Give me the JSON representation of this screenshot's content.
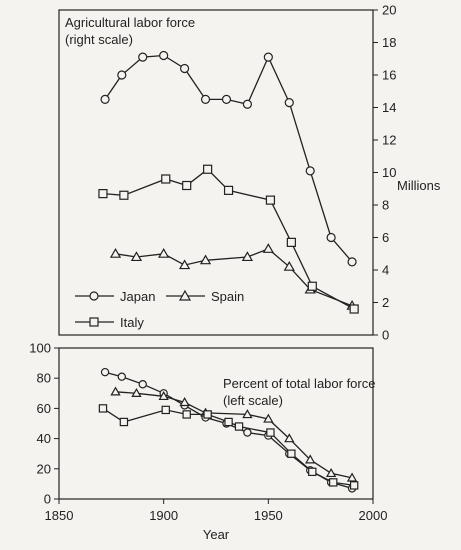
{
  "chart_data": [
    {
      "type": "line",
      "title": "Agricultural labor force",
      "subtitle": "(right scale)",
      "ylabel": "Millions",
      "xlim": [
        1850,
        2000
      ],
      "ylim": [
        0,
        20
      ],
      "yticks": [
        0,
        2,
        4,
        6,
        8,
        10,
        12,
        14,
        16,
        18,
        20
      ],
      "grid": false,
      "legend": {
        "position": "bottom-left",
        "entries": [
          {
            "name": "Japan",
            "marker": "circle"
          },
          {
            "name": "Spain",
            "marker": "triangle"
          },
          {
            "name": "Italy",
            "marker": "square"
          }
        ]
      },
      "series": [
        {
          "name": "Japan",
          "marker": "circle",
          "x": [
            1872,
            1880,
            1890,
            1900,
            1910,
            1920,
            1930,
            1940,
            1950,
            1960,
            1970,
            1980,
            1990
          ],
          "y": [
            14.5,
            16.0,
            17.1,
            17.2,
            16.4,
            14.5,
            14.5,
            14.2,
            17.1,
            14.3,
            10.1,
            6.0,
            4.5
          ]
        },
        {
          "name": "Spain",
          "marker": "triangle",
          "x": [
            1877,
            1887,
            1900,
            1910,
            1920,
            1940,
            1950,
            1960,
            1970,
            1990
          ],
          "y": [
            5.0,
            4.8,
            5.0,
            4.3,
            4.6,
            4.8,
            5.3,
            4.2,
            2.8,
            1.8
          ]
        },
        {
          "name": "Italy",
          "marker": "square",
          "x": [
            1871,
            1881,
            1901,
            1911,
            1921,
            1931,
            1951,
            1961,
            1971,
            1991
          ],
          "y": [
            8.7,
            8.6,
            9.6,
            9.2,
            10.2,
            8.9,
            8.3,
            5.7,
            3.0,
            1.6
          ]
        }
      ]
    },
    {
      "type": "line",
      "title": "Percent of total labor force",
      "subtitle": "(left scale)",
      "xlabel": "Year",
      "xlim": [
        1850,
        2000
      ],
      "ylim": [
        0,
        100
      ],
      "xticks": [
        1850,
        1900,
        1950,
        2000
      ],
      "yticks": [
        0,
        20,
        40,
        60,
        80,
        100
      ],
      "grid": false,
      "series": [
        {
          "name": "Japan",
          "marker": "circle",
          "x": [
            1872,
            1880,
            1890,
            1900,
            1910,
            1920,
            1930,
            1940,
            1950,
            1960,
            1970,
            1980,
            1990
          ],
          "y": [
            84,
            81,
            76,
            70,
            62,
            54,
            50,
            44,
            42,
            30,
            19,
            11,
            7
          ]
        },
        {
          "name": "Spain",
          "marker": "triangle",
          "x": [
            1877,
            1887,
            1900,
            1910,
            1920,
            1940,
            1950,
            1960,
            1970,
            1980,
            1990
          ],
          "y": [
            71,
            70,
            68,
            64,
            57,
            56,
            53,
            40,
            26,
            17,
            14
          ]
        },
        {
          "name": "Italy",
          "marker": "square",
          "x": [
            1871,
            1881,
            1901,
            1911,
            1921,
            1931,
            1936,
            1951,
            1961,
            1971,
            1981,
            1991
          ],
          "y": [
            60,
            51,
            59,
            56,
            56,
            51,
            48,
            44,
            30,
            18,
            11,
            9
          ]
        }
      ]
    }
  ]
}
